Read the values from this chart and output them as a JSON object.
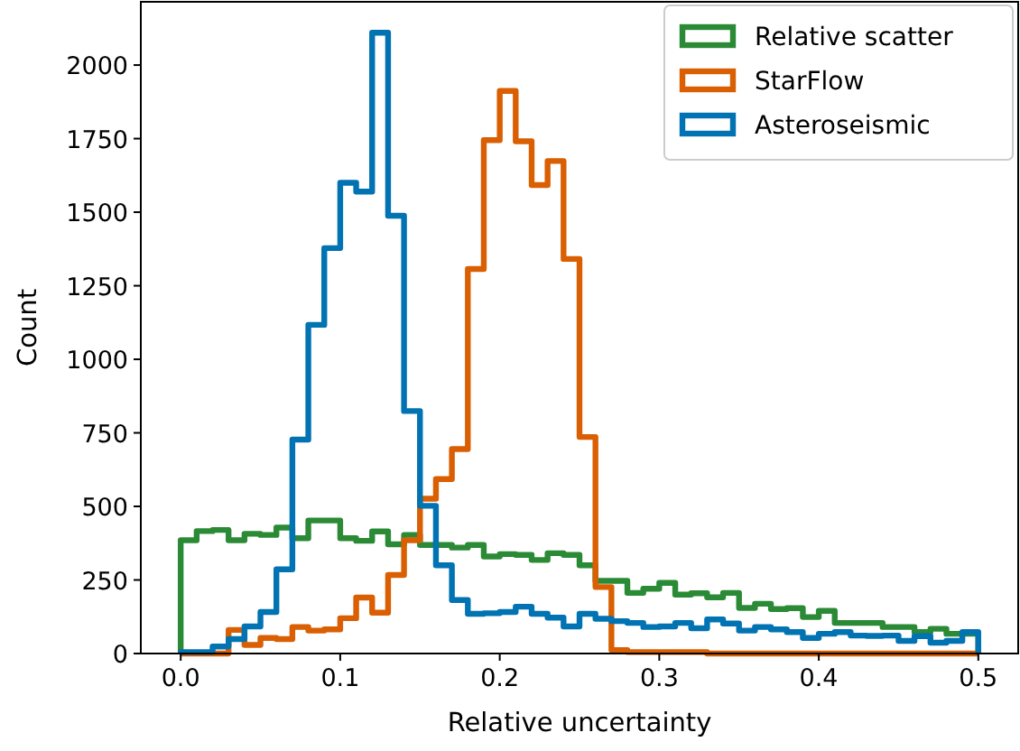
{
  "chart_data": {
    "type": "histogram",
    "xlabel": "Relative uncertainty",
    "ylabel": "Count",
    "bins": [
      0,
      0.01,
      0.02,
      0.03,
      0.04,
      0.05,
      0.06,
      0.07,
      0.08,
      0.09,
      0.1,
      0.11,
      0.12,
      0.13,
      0.14,
      0.15,
      0.16,
      0.17,
      0.18,
      0.19,
      0.2,
      0.21,
      0.22,
      0.23,
      0.24,
      0.25,
      0.26,
      0.27,
      0.28,
      0.29,
      0.3,
      0.31,
      0.32,
      0.33,
      0.34,
      0.35,
      0.36,
      0.37,
      0.38,
      0.39,
      0.4,
      0.41,
      0.42,
      0.43,
      0.44,
      0.45,
      0.46,
      0.47,
      0.48,
      0.49,
      0.5
    ],
    "series": [
      {
        "name": "Relative scatter",
        "color": "#2a8a35",
        "values": [
          385,
          416,
          420,
          385,
          407,
          403,
          428,
          392,
          452,
          452,
          392,
          383,
          415,
          371,
          403,
          369,
          369,
          360,
          369,
          330,
          338,
          335,
          318,
          341,
          335,
          300,
          247,
          247,
          206,
          220,
          240,
          200,
          205,
          191,
          206,
          155,
          169,
          151,
          154,
          124,
          145,
          104,
          104,
          104,
          90,
          90,
          73,
          84,
          67,
          67
        ]
      },
      {
        "name": "StarFlow",
        "color": "#d95f02",
        "values": [
          0,
          0,
          0,
          80,
          29,
          53,
          49,
          90,
          78,
          82,
          120,
          190,
          139,
          267,
          385,
          526,
          593,
          695,
          1307,
          1745,
          1912,
          1741,
          1592,
          1674,
          1341,
          736,
          226,
          12,
          5,
          5,
          5,
          5,
          5,
          0,
          0,
          0,
          0,
          0,
          0,
          0,
          0,
          0,
          0,
          0,
          0,
          0,
          0,
          0,
          0,
          0
        ]
      },
      {
        "name": "Asteroseismic",
        "color": "#0173b2",
        "values": [
          5,
          5,
          24,
          49,
          92,
          141,
          286,
          727,
          1117,
          1378,
          1600,
          1570,
          2110,
          1488,
          824,
          502,
          300,
          182,
          135,
          137,
          141,
          159,
          135,
          122,
          92,
          135,
          118,
          110,
          104,
          90,
          92,
          104,
          86,
          116,
          102,
          78,
          90,
          82,
          73,
          53,
          67,
          73,
          61,
          60,
          61,
          43,
          59,
          37,
          43,
          73
        ]
      }
    ],
    "xlim": [
      -0.025,
      0.525
    ],
    "xticks": [
      {
        "value": 0,
        "label": "0.0"
      },
      0.1,
      0.2,
      0.3,
      0.4,
      0.5
    ],
    "ylim": [
      0,
      2215
    ],
    "yticks": [
      0,
      250,
      500,
      750,
      1000,
      1250,
      1500,
      1750,
      2000
    ],
    "legend": "top right"
  }
}
